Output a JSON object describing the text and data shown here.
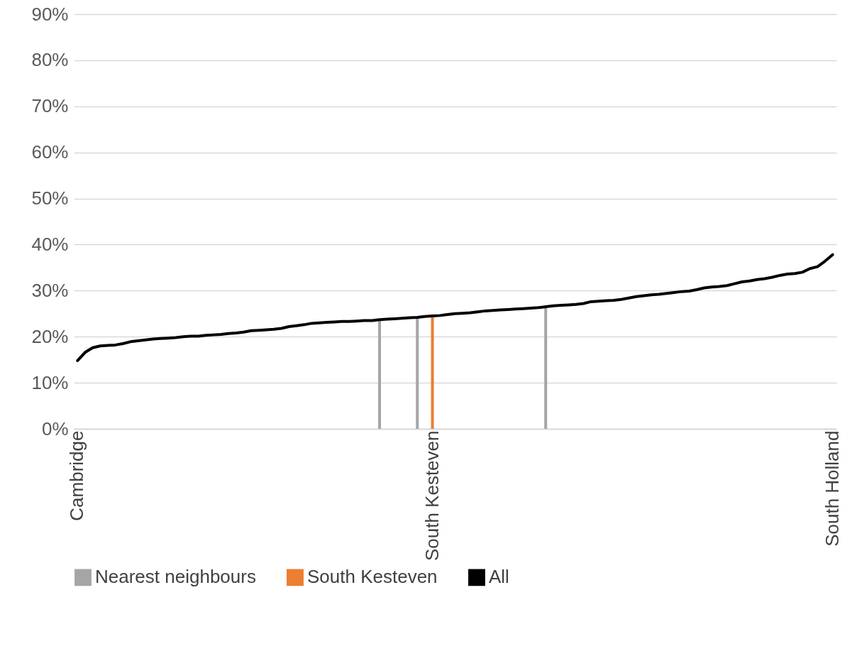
{
  "chart_data": {
    "type": "line",
    "categories": [
      "Cambridge",
      null,
      null,
      null,
      null,
      null,
      null,
      null,
      null,
      null,
      null,
      null,
      null,
      null,
      null,
      null,
      null,
      null,
      null,
      null,
      null,
      null,
      null,
      null,
      null,
      null,
      null,
      null,
      null,
      null,
      null,
      null,
      null,
      null,
      null,
      null,
      null,
      null,
      null,
      null,
      null,
      null,
      null,
      null,
      null,
      null,
      null,
      "South Kesteven",
      null,
      null,
      null,
      null,
      null,
      null,
      null,
      null,
      null,
      null,
      null,
      null,
      null,
      null,
      null,
      null,
      null,
      null,
      null,
      null,
      null,
      null,
      null,
      null,
      null,
      null,
      null,
      null,
      null,
      null,
      null,
      null,
      null,
      null,
      null,
      null,
      null,
      null,
      null,
      null,
      null,
      null,
      null,
      null,
      null,
      null,
      null,
      null,
      null,
      null,
      null,
      null,
      "South Holland"
    ],
    "series": [
      {
        "name": "Nearest neighbours",
        "type": "bar",
        "color": "#a5a5a5",
        "values": [
          null,
          null,
          null,
          null,
          null,
          null,
          null,
          null,
          null,
          null,
          null,
          null,
          null,
          null,
          null,
          null,
          null,
          null,
          null,
          null,
          null,
          null,
          null,
          null,
          null,
          null,
          null,
          null,
          null,
          null,
          null,
          null,
          null,
          null,
          null,
          null,
          null,
          null,
          null,
          null,
          23.7,
          null,
          null,
          null,
          null,
          24.2,
          null,
          null,
          null,
          null,
          null,
          null,
          null,
          null,
          null,
          null,
          null,
          null,
          null,
          null,
          null,
          null,
          26.5,
          null,
          null,
          null,
          null,
          null,
          null,
          null,
          null,
          null,
          null,
          null,
          null,
          null,
          null,
          null,
          null,
          null,
          null,
          null,
          null,
          null,
          null,
          null,
          null,
          null,
          null,
          null,
          null,
          null,
          null,
          null,
          null,
          null,
          null,
          null,
          null,
          null,
          null
        ]
      },
      {
        "name": "South Kesteven",
        "type": "bar",
        "color": "#ed7d31",
        "values": [
          null,
          null,
          null,
          null,
          null,
          null,
          null,
          null,
          null,
          null,
          null,
          null,
          null,
          null,
          null,
          null,
          null,
          null,
          null,
          null,
          null,
          null,
          null,
          null,
          null,
          null,
          null,
          null,
          null,
          null,
          null,
          null,
          null,
          null,
          null,
          null,
          null,
          null,
          null,
          null,
          null,
          null,
          null,
          null,
          null,
          null,
          null,
          24.5,
          null,
          null,
          null,
          null,
          null,
          null,
          null,
          null,
          null,
          null,
          null,
          null,
          null,
          null,
          null,
          null,
          null,
          null,
          null,
          null,
          null,
          null,
          null,
          null,
          null,
          null,
          null,
          null,
          null,
          null,
          null,
          null,
          null,
          null,
          null,
          null,
          null,
          null,
          null,
          null,
          null,
          null,
          null,
          null,
          null,
          null,
          null,
          null,
          null,
          null,
          null,
          null,
          null
        ]
      },
      {
        "name": "All",
        "color": "#000000",
        "values": [
          14.8,
          16.6,
          17.6,
          18.0,
          18.1,
          18.2,
          18.5,
          18.9,
          19.1,
          19.3,
          19.5,
          19.6,
          19.7,
          19.8,
          20.0,
          20.1,
          20.1,
          20.3,
          20.4,
          20.5,
          20.7,
          20.8,
          21.0,
          21.3,
          21.4,
          21.5,
          21.6,
          21.8,
          22.2,
          22.4,
          22.6,
          22.9,
          23.0,
          23.1,
          23.2,
          23.3,
          23.3,
          23.4,
          23.5,
          23.5,
          23.7,
          23.8,
          23.9,
          24.0,
          24.1,
          24.2,
          24.4,
          24.5,
          24.6,
          24.8,
          25.0,
          25.1,
          25.2,
          25.4,
          25.6,
          25.7,
          25.8,
          25.9,
          26.0,
          26.1,
          26.2,
          26.3,
          26.5,
          26.7,
          26.8,
          26.9,
          27.0,
          27.2,
          27.6,
          27.7,
          27.8,
          27.9,
          28.1,
          28.4,
          28.7,
          28.9,
          29.1,
          29.2,
          29.4,
          29.6,
          29.8,
          29.9,
          30.2,
          30.6,
          30.8,
          30.9,
          31.1,
          31.5,
          31.9,
          32.1,
          32.4,
          32.6,
          32.9,
          33.3,
          33.6,
          33.7,
          34.0,
          34.8,
          35.2,
          36.4,
          37.8
        ]
      }
    ],
    "ylim": [
      0,
      90
    ],
    "yticks": [
      {
        "value": 0,
        "label": "0%"
      },
      {
        "value": 10,
        "label": "10%"
      },
      {
        "value": 20,
        "label": "20%"
      },
      {
        "value": 30,
        "label": "30%"
      },
      {
        "value": 40,
        "label": "40%"
      },
      {
        "value": 50,
        "label": "50%"
      },
      {
        "value": 60,
        "label": "60%"
      },
      {
        "value": 70,
        "label": "70%"
      },
      {
        "value": 80,
        "label": "80%"
      },
      {
        "value": 90,
        "label": "90%"
      }
    ],
    "grid": "y",
    "legend": "bottom"
  }
}
